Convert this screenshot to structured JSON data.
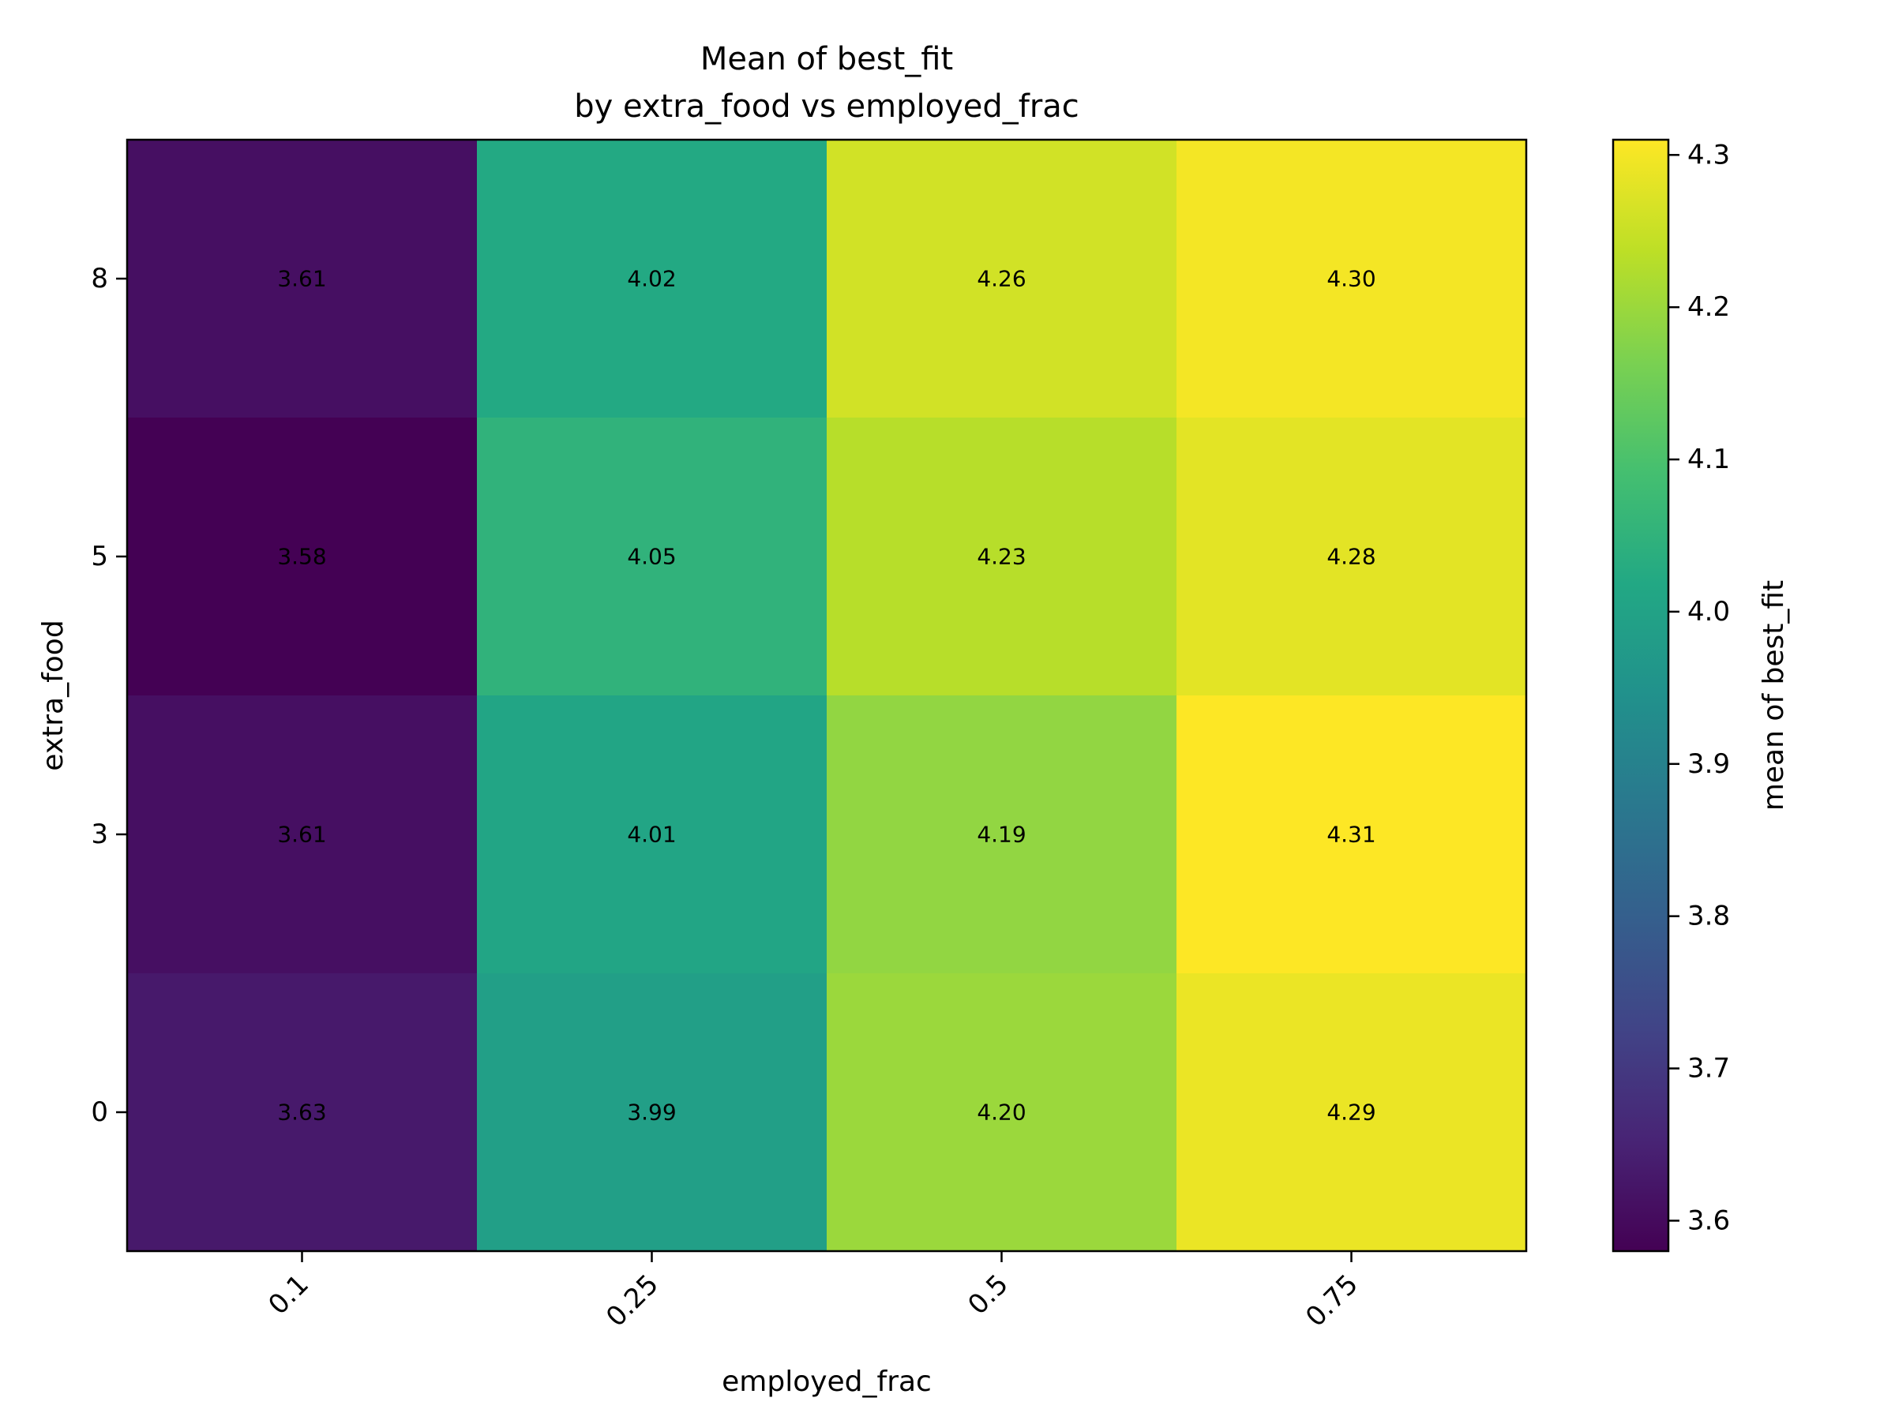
{
  "chart_data": {
    "type": "heatmap",
    "title": "Mean of best_fit\nby extra_food vs employed_frac",
    "title_lines": [
      "Mean of best_fit",
      "by extra_food vs employed_frac"
    ],
    "xlabel": "employed_frac",
    "ylabel": "extra_food",
    "x_categories": [
      "0.1",
      "0.25",
      "0.5",
      "0.75"
    ],
    "y_categories": [
      "8",
      "5",
      "3",
      "0"
    ],
    "values": [
      [
        3.61,
        4.02,
        4.26,
        4.3
      ],
      [
        3.58,
        4.05,
        4.23,
        4.28
      ],
      [
        3.61,
        4.01,
        4.19,
        4.31
      ],
      [
        3.63,
        3.99,
        4.2,
        4.29
      ]
    ],
    "value_labels": [
      [
        "3.61",
        "4.02",
        "4.26",
        "4.30"
      ],
      [
        "3.58",
        "4.05",
        "4.23",
        "4.28"
      ],
      [
        "3.61",
        "4.01",
        "4.19",
        "4.31"
      ],
      [
        "3.63",
        "3.99",
        "4.20",
        "4.29"
      ]
    ],
    "colormap": "viridis",
    "colorbar": {
      "label": "mean of best_fit",
      "min": 3.58,
      "max": 4.31,
      "ticks": [
        "3.6",
        "3.7",
        "3.8",
        "3.9",
        "4.0",
        "4.1",
        "4.2",
        "4.3"
      ]
    },
    "grid": false,
    "legend": "none"
  }
}
